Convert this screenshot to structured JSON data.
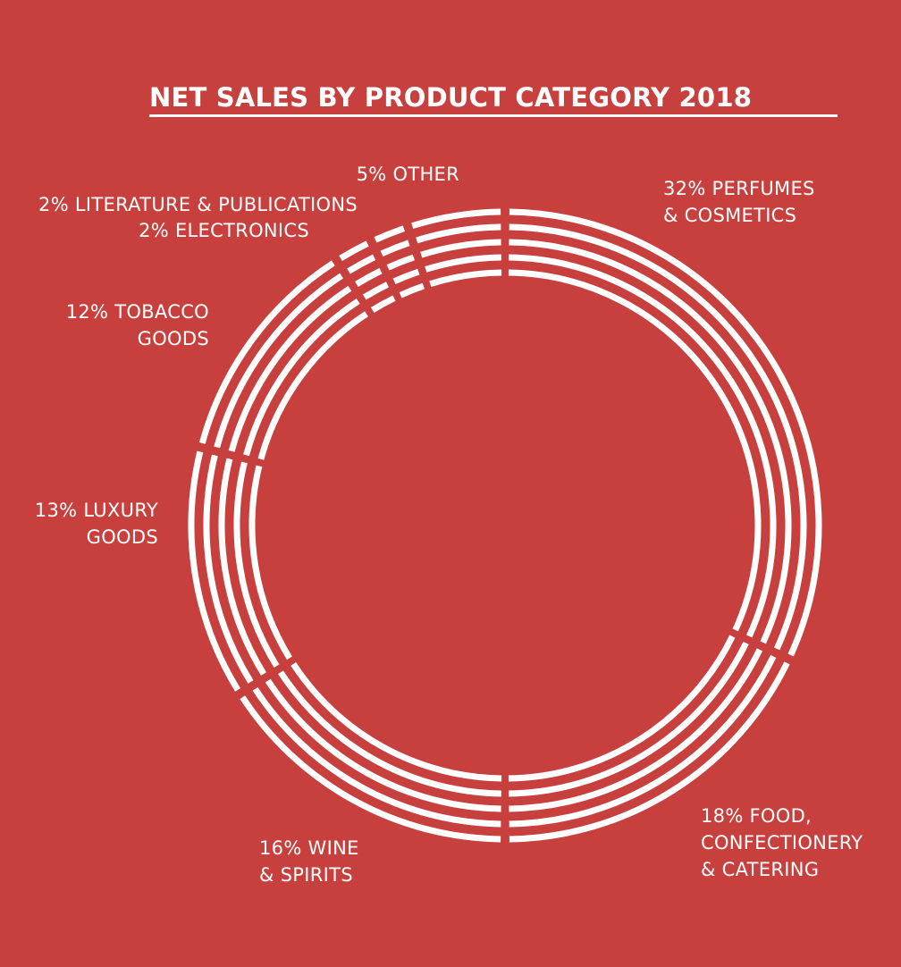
{
  "title": "NET SALES BY PRODUCT CATEGORY 2018",
  "colors": {
    "background": "#c8403e",
    "foreground": "#ffffff"
  },
  "chart_data": {
    "type": "pie",
    "title": "NET SALES BY PRODUCT CATEGORY 2018",
    "unit": "%",
    "start": "12 o'clock",
    "direction": "clockwise",
    "slices": [
      {
        "category": "PERFUMES & COSMETICS",
        "value": 32,
        "label_lines": [
          "32% PERFUMES",
          "& COSMETICS"
        ]
      },
      {
        "category": "FOOD, CONFECTIONERY & CATERING",
        "value": 18,
        "label_lines": [
          "18% FOOD,",
          "CONFECTIONERY",
          "& CATERING"
        ]
      },
      {
        "category": "WINE & SPIRITS",
        "value": 16,
        "label_lines": [
          "16% WINE",
          "& SPIRITS"
        ]
      },
      {
        "category": "LUXURY GOODS",
        "value": 13,
        "label_lines": [
          "13% LUXURY",
          "GOODS"
        ]
      },
      {
        "category": "TOBACCO GOODS",
        "value": 12,
        "label_lines": [
          "12% TOBACCO",
          "GOODS"
        ]
      },
      {
        "category": "LITERATURE & PUBLICATIONS",
        "value": 2,
        "label_lines": [
          "2% LITERATURE & PUBLICATIONS"
        ]
      },
      {
        "category": "ELECTRONICS",
        "value": 2,
        "label_lines": [
          "2% ELECTRONICS"
        ]
      },
      {
        "category": "OTHER",
        "value": 5,
        "label_lines": [
          "5% OTHER"
        ]
      }
    ]
  }
}
